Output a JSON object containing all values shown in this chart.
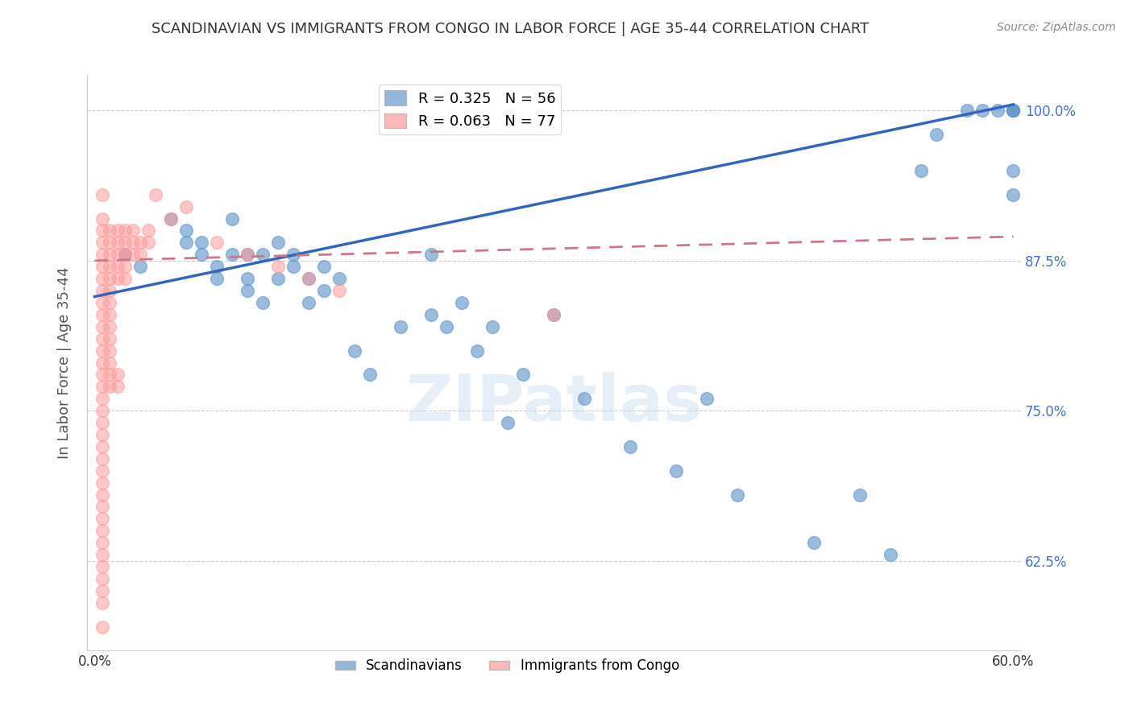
{
  "title": "SCANDINAVIAN VS IMMIGRANTS FROM CONGO IN LABOR FORCE | AGE 35-44 CORRELATION CHART",
  "source": "Source: ZipAtlas.com",
  "ylabel": "In Labor Force | Age 35-44",
  "xlim": [
    -0.005,
    0.605
  ],
  "ylim": [
    0.55,
    1.03
  ],
  "xticks": [
    0.0,
    0.1,
    0.2,
    0.3,
    0.4,
    0.5,
    0.6
  ],
  "xticklabels": [
    "0.0%",
    "",
    "",
    "",
    "",
    "",
    "60.0%"
  ],
  "yticks_right": [
    0.625,
    0.75,
    0.875,
    1.0
  ],
  "ytick_right_labels": [
    "62.5%",
    "75.0%",
    "87.5%",
    "100.0%"
  ],
  "legend_blue_r": "R = 0.325",
  "legend_blue_n": "N = 56",
  "legend_pink_r": "R = 0.063",
  "legend_pink_n": "N = 77",
  "blue_color": "#6699CC",
  "pink_color": "#FF9999",
  "blue_label": "Scandinavians",
  "pink_label": "Immigrants from Congo",
  "watermark": "ZIPatlas",
  "blue_scatter_x": [
    0.02,
    0.03,
    0.05,
    0.06,
    0.06,
    0.07,
    0.07,
    0.08,
    0.08,
    0.09,
    0.09,
    0.1,
    0.1,
    0.1,
    0.11,
    0.11,
    0.12,
    0.12,
    0.13,
    0.13,
    0.14,
    0.14,
    0.15,
    0.15,
    0.16,
    0.17,
    0.18,
    0.2,
    0.22,
    0.22,
    0.23,
    0.24,
    0.25,
    0.26,
    0.27,
    0.28,
    0.3,
    0.32,
    0.35,
    0.38,
    0.4,
    0.42,
    0.47,
    0.5,
    0.52,
    0.54,
    0.55,
    0.57,
    0.58,
    0.59,
    0.6,
    0.6,
    0.6,
    0.6,
    0.6,
    0.6
  ],
  "blue_scatter_y": [
    0.88,
    0.87,
    0.91,
    0.9,
    0.89,
    0.89,
    0.88,
    0.87,
    0.86,
    0.91,
    0.88,
    0.86,
    0.85,
    0.88,
    0.84,
    0.88,
    0.89,
    0.86,
    0.87,
    0.88,
    0.84,
    0.86,
    0.85,
    0.87,
    0.86,
    0.8,
    0.78,
    0.82,
    0.83,
    0.88,
    0.82,
    0.84,
    0.8,
    0.82,
    0.74,
    0.78,
    0.83,
    0.76,
    0.72,
    0.7,
    0.76,
    0.68,
    0.64,
    0.68,
    0.63,
    0.95,
    0.98,
    1.0,
    1.0,
    1.0,
    1.0,
    1.0,
    1.0,
    1.0,
    0.93,
    0.95
  ],
  "pink_scatter_x": [
    0.005,
    0.005,
    0.005,
    0.005,
    0.005,
    0.005,
    0.005,
    0.005,
    0.005,
    0.005,
    0.005,
    0.005,
    0.005,
    0.005,
    0.005,
    0.005,
    0.005,
    0.005,
    0.005,
    0.01,
    0.01,
    0.01,
    0.01,
    0.01,
    0.01,
    0.01,
    0.01,
    0.01,
    0.01,
    0.01,
    0.01,
    0.01,
    0.01,
    0.015,
    0.015,
    0.015,
    0.015,
    0.015,
    0.015,
    0.015,
    0.02,
    0.02,
    0.02,
    0.02,
    0.02,
    0.025,
    0.025,
    0.025,
    0.03,
    0.03,
    0.035,
    0.035,
    0.04,
    0.05,
    0.06,
    0.08,
    0.1,
    0.12,
    0.14,
    0.16,
    0.005,
    0.005,
    0.005,
    0.005,
    0.005,
    0.005,
    0.005,
    0.005,
    0.005,
    0.005,
    0.005,
    0.005,
    0.005,
    0.005,
    0.005,
    0.005,
    0.3
  ],
  "pink_scatter_y": [
    0.93,
    0.91,
    0.9,
    0.89,
    0.88,
    0.87,
    0.86,
    0.85,
    0.84,
    0.83,
    0.82,
    0.81,
    0.8,
    0.79,
    0.78,
    0.77,
    0.76,
    0.75,
    0.74,
    0.9,
    0.89,
    0.88,
    0.87,
    0.86,
    0.85,
    0.84,
    0.83,
    0.82,
    0.81,
    0.8,
    0.79,
    0.78,
    0.77,
    0.9,
    0.89,
    0.88,
    0.87,
    0.86,
    0.78,
    0.77,
    0.9,
    0.89,
    0.88,
    0.87,
    0.86,
    0.9,
    0.89,
    0.88,
    0.89,
    0.88,
    0.9,
    0.89,
    0.93,
    0.91,
    0.92,
    0.89,
    0.88,
    0.87,
    0.86,
    0.85,
    0.73,
    0.72,
    0.71,
    0.7,
    0.69,
    0.68,
    0.67,
    0.66,
    0.65,
    0.64,
    0.63,
    0.62,
    0.61,
    0.6,
    0.59,
    0.57,
    0.83
  ],
  "blue_trend_x": [
    0.0,
    0.6
  ],
  "blue_trend_y": [
    0.845,
    1.005
  ],
  "pink_trend_x": [
    0.0,
    0.6
  ],
  "pink_trend_y": [
    0.875,
    0.895
  ],
  "background_color": "#ffffff",
  "grid_color": "#cccccc",
  "title_color": "#333333",
  "right_tick_color": "#4472C4"
}
